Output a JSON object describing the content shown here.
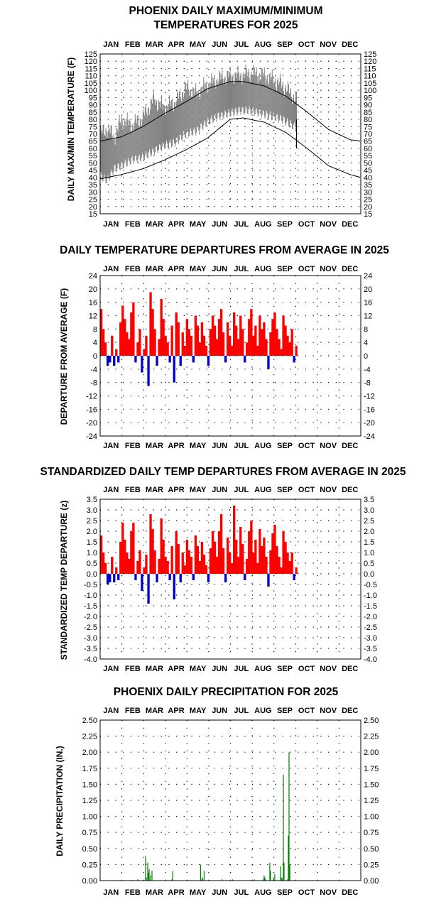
{
  "colors": {
    "positive": "#ff0000",
    "negative": "#0000cc",
    "precip": "#008000",
    "band": "#808080",
    "normals": "#000000"
  },
  "months": [
    "JAN",
    "FEB",
    "MAR",
    "APR",
    "MAY",
    "JUN",
    "JUL",
    "AUG",
    "SEP",
    "OCT",
    "NOV",
    "DEC"
  ],
  "chart_data": [
    {
      "id": "temps",
      "type": "area",
      "title_lines": [
        "PHOENIX DAILY MAXIMUM/MINIMUM",
        "TEMPERATURES FOR 2025"
      ],
      "ylabel": "DAILY MAX/MIN TEMPERATURE (F)",
      "ylim": [
        15,
        125
      ],
      "yticks": [
        15,
        20,
        25,
        30,
        35,
        40,
        45,
        50,
        55,
        60,
        65,
        70,
        75,
        80,
        85,
        90,
        95,
        100,
        105,
        110,
        115,
        120,
        125
      ],
      "last_day": 275,
      "normal_high": {
        "t": [
          0,
          30,
          60,
          90,
          120,
          150,
          182,
          200,
          230,
          260,
          290,
          320,
          350,
          365
        ],
        "v": [
          65,
          68,
          75,
          84,
          92,
          101,
          106,
          106,
          103,
          96,
          85,
          73,
          66,
          65
        ]
      },
      "normal_low": {
        "t": [
          0,
          30,
          60,
          90,
          120,
          150,
          182,
          200,
          230,
          260,
          290,
          320,
          350,
          365
        ],
        "v": [
          39,
          42,
          46,
          52,
          59,
          67,
          80,
          81,
          78,
          71,
          60,
          48,
          42,
          40
        ]
      },
      "obs_high": {
        "t": [
          0,
          10,
          20,
          30,
          45,
          60,
          75,
          90,
          105,
          120,
          135,
          150,
          165,
          180,
          195,
          210,
          225,
          240,
          255,
          275
        ],
        "v": [
          70,
          74,
          68,
          80,
          76,
          82,
          94,
          88,
          92,
          102,
          98,
          104,
          108,
          110,
          110,
          112,
          111,
          108,
          104,
          94
        ]
      },
      "obs_low": {
        "t": [
          0,
          10,
          20,
          30,
          45,
          60,
          75,
          90,
          105,
          120,
          135,
          150,
          165,
          180,
          195,
          210,
          225,
          240,
          255,
          275
        ],
        "v": [
          41,
          38,
          46,
          48,
          52,
          54,
          58,
          62,
          64,
          70,
          72,
          78,
          82,
          84,
          86,
          86,
          84,
          82,
          80,
          74
        ]
      }
    },
    {
      "id": "departures",
      "type": "bar",
      "title_lines": [
        "DAILY TEMPERATURE DEPARTURES FROM AVERAGE IN 2025"
      ],
      "ylabel": "DEPARTURE FROM AVERAGE (F)",
      "ylim": [
        -24,
        24
      ],
      "yticks": [
        24,
        20,
        16,
        12,
        8,
        4,
        0,
        -4,
        -8,
        -12,
        -16,
        -20,
        -24
      ],
      "last_day": 275,
      "days": [
        0,
        3,
        6,
        9,
        12,
        15,
        18,
        21,
        24,
        27,
        30,
        33,
        36,
        39,
        42,
        45,
        48,
        51,
        54,
        57,
        60,
        63,
        66,
        69,
        72,
        75,
        78,
        81,
        84,
        87,
        90,
        93,
        96,
        99,
        102,
        105,
        108,
        111,
        114,
        117,
        120,
        123,
        126,
        129,
        132,
        135,
        138,
        141,
        144,
        147,
        150,
        153,
        156,
        159,
        162,
        165,
        168,
        171,
        174,
        177,
        180,
        183,
        186,
        189,
        192,
        195,
        198,
        201,
        204,
        207,
        210,
        213,
        216,
        219,
        222,
        225,
        228,
        231,
        234,
        237,
        240,
        243,
        246,
        249,
        252,
        255,
        258,
        261,
        264,
        267,
        270,
        273
      ],
      "values": [
        14,
        8,
        4,
        -3,
        -2,
        6,
        -3,
        2,
        -2,
        10,
        15,
        11,
        7,
        5,
        13,
        16,
        -2,
        4,
        8,
        -5,
        2,
        6,
        -9,
        19,
        14,
        8,
        -3,
        5,
        17,
        11,
        6,
        4,
        -2,
        9,
        -8,
        13,
        10,
        -3,
        7,
        3,
        11,
        8,
        6,
        -2,
        12,
        9,
        4,
        10,
        6,
        3,
        -3,
        8,
        12,
        9,
        5,
        11,
        14,
        7,
        -2,
        10,
        6,
        3,
        13,
        9,
        5,
        12,
        8,
        -2,
        4,
        11,
        14,
        6,
        9,
        3,
        12,
        8,
        10,
        5,
        -4,
        7,
        11,
        13,
        8,
        5,
        2,
        12,
        9,
        6,
        4,
        8,
        -2,
        3
      ],
      "tick_format": "int"
    },
    {
      "id": "standardized",
      "type": "bar",
      "title_lines": [
        "STANDARDIZED DAILY TEMP DEPARTURES FROM AVERAGE IN 2025"
      ],
      "ylabel": "STANDARDIZED TEMP DEPARTURE (z)",
      "ylim": [
        -4.0,
        3.5
      ],
      "yticks": [
        3.5,
        3.0,
        2.5,
        2.0,
        1.5,
        1.0,
        0.5,
        0.0,
        -0.5,
        -1.0,
        -1.5,
        -2.0,
        -2.5,
        -3.0,
        -3.5,
        -4.0
      ],
      "last_day": 275,
      "days": [
        0,
        3,
        6,
        9,
        12,
        15,
        18,
        21,
        24,
        27,
        30,
        33,
        36,
        39,
        42,
        45,
        48,
        51,
        54,
        57,
        60,
        63,
        66,
        69,
        72,
        75,
        78,
        81,
        84,
        87,
        90,
        93,
        96,
        99,
        102,
        105,
        108,
        111,
        114,
        117,
        120,
        123,
        126,
        129,
        132,
        135,
        138,
        141,
        144,
        147,
        150,
        153,
        156,
        159,
        162,
        165,
        168,
        171,
        174,
        177,
        180,
        183,
        186,
        189,
        192,
        195,
        198,
        201,
        204,
        207,
        210,
        213,
        216,
        219,
        222,
        225,
        228,
        231,
        234,
        237,
        240,
        243,
        246,
        249,
        252,
        255,
        258,
        261,
        264,
        267,
        270,
        273
      ],
      "values": [
        1.8,
        1.0,
        0.5,
        -0.5,
        -0.4,
        0.8,
        -0.4,
        0.3,
        -0.3,
        1.5,
        2.4,
        1.6,
        1.0,
        0.7,
        2.0,
        2.4,
        -0.3,
        0.6,
        1.1,
        -0.8,
        0.3,
        0.9,
        -1.4,
        2.8,
        2.1,
        1.1,
        -0.4,
        0.7,
        2.6,
        1.6,
        0.8,
        0.6,
        -0.3,
        1.3,
        -1.2,
        2.0,
        1.4,
        -0.4,
        1.0,
        0.4,
        1.6,
        1.1,
        0.8,
        -0.3,
        1.8,
        1.3,
        0.6,
        1.5,
        0.9,
        0.4,
        -0.4,
        1.2,
        2.0,
        1.5,
        0.8,
        2.0,
        2.8,
        1.2,
        -0.4,
        1.7,
        1.0,
        0.5,
        3.2,
        1.6,
        0.8,
        2.2,
        1.4,
        -0.3,
        0.7,
        2.0,
        2.5,
        1.0,
        1.6,
        0.5,
        2.1,
        1.3,
        1.7,
        0.8,
        -0.6,
        1.1,
        1.9,
        2.3,
        1.3,
        0.8,
        0.3,
        2.0,
        1.5,
        1.0,
        0.6,
        1.0,
        -0.3,
        0.3
      ],
      "tick_format": "dec1"
    },
    {
      "id": "precip",
      "type": "bar",
      "title_lines": [
        "PHOENIX DAILY PRECIPITATION FOR 2025"
      ],
      "ylabel": "DAILY PRECIPITATION (IN.)",
      "ylim": [
        0,
        2.5
      ],
      "yticks": [
        2.5,
        2.25,
        2.0,
        1.75,
        1.5,
        1.25,
        1.0,
        0.75,
        0.5,
        0.25,
        0.0
      ],
      "days": [
        44,
        52,
        63,
        64,
        66,
        67,
        68,
        70,
        72,
        100,
        101,
        140,
        142,
        143,
        145,
        170,
        185,
        215,
        228,
        229,
        230,
        231,
        237,
        238,
        242,
        244,
        252,
        253,
        254,
        256,
        257,
        262,
        263,
        264,
        265
      ],
      "values": [
        0.01,
        0.02,
        0.38,
        0.05,
        0.28,
        0.12,
        0.18,
        0.08,
        0.15,
        0.02,
        0.15,
        0.25,
        0.05,
        0.03,
        0.15,
        0.02,
        0.02,
        0.02,
        0.02,
        0.08,
        0.05,
        0.02,
        0.28,
        0.15,
        0.05,
        0.1,
        0.22,
        0.03,
        0.05,
        1.65,
        0.28,
        0.02,
        0.7,
        2.0,
        0.25
      ],
      "tick_format": "dec2"
    }
  ]
}
